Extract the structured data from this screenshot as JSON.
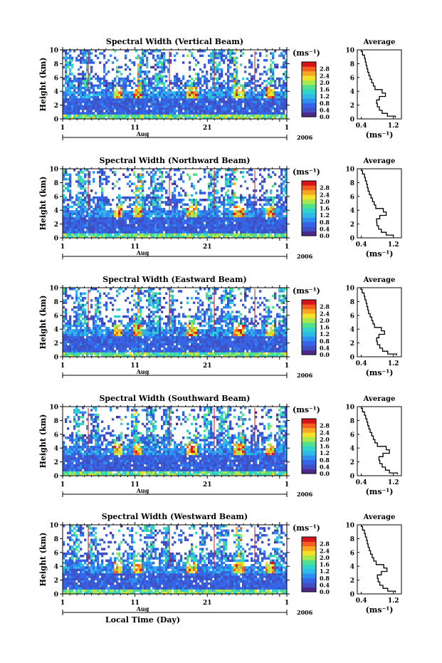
{
  "chart_data": [
    {
      "type": "heatmap",
      "title": "Spectral Width (Vertical Beam)",
      "ylabel": "Height (km)",
      "yticks": [
        "0",
        "2",
        "4",
        "6",
        "8",
        "10"
      ],
      "ylim": [
        0,
        10
      ],
      "xticks": [
        "1",
        "11",
        "21",
        "1"
      ],
      "month": "Aug",
      "year": "2006",
      "colorbar_unit": "(ms⁻¹)",
      "colorbar_ticks": [
        "0.0",
        "0.4",
        "0.8",
        "1.2",
        "1.6",
        "2.0",
        "2.4",
        "2.8"
      ],
      "colorbar_range": [
        0,
        3.2
      ],
      "average": {
        "title": "Average",
        "xticks": [
          "0.4",
          "1.2"
        ],
        "xlim": [
          0.3,
          1.4
        ],
        "xlabel": "(ms⁻¹)",
        "heights": [
          0.2,
          0.6,
          1,
          1.5,
          2,
          2.5,
          3,
          3.5,
          4,
          4.5,
          5,
          5.5,
          6,
          6.5,
          7,
          7.5,
          8,
          8.5,
          9,
          9.5,
          10
        ],
        "values": [
          1.25,
          1.05,
          0.92,
          0.85,
          0.8,
          0.78,
          0.85,
          1.0,
          0.92,
          0.74,
          0.7,
          0.66,
          0.62,
          0.59,
          0.56,
          0.54,
          0.52,
          0.5,
          0.48,
          0.43,
          0.4
        ]
      }
    },
    {
      "type": "heatmap",
      "title": "Spectral Width (Northward Beam)",
      "ylabel": "Height (km)",
      "yticks": [
        "0",
        "2",
        "4",
        "6",
        "8",
        "10"
      ],
      "ylim": [
        0,
        10
      ],
      "xticks": [
        "1",
        "11",
        "21",
        "1"
      ],
      "month": "Aug",
      "year": "2006",
      "colorbar_unit": "(ms⁻¹)",
      "colorbar_ticks": [
        "0.0",
        "0.4",
        "0.8",
        "1.2",
        "1.6",
        "2.0",
        "2.4",
        "2.8"
      ],
      "colorbar_range": [
        0,
        3.2
      ],
      "average": {
        "title": "Average",
        "xticks": [
          "0.4",
          "1.2"
        ],
        "xlim": [
          0.3,
          1.4
        ],
        "xlabel": "(ms⁻¹)",
        "heights": [
          0.2,
          0.6,
          1,
          1.5,
          2,
          2.5,
          3,
          3.5,
          4,
          4.5,
          5,
          5.5,
          6,
          6.5,
          7,
          7.5,
          8,
          8.5,
          9,
          9.5,
          10
        ],
        "values": [
          1.2,
          1.02,
          0.9,
          0.83,
          0.79,
          0.78,
          0.86,
          1.02,
          0.95,
          0.76,
          0.72,
          0.68,
          0.64,
          0.6,
          0.57,
          0.55,
          0.53,
          0.5,
          0.48,
          0.43,
          0.4
        ]
      }
    },
    {
      "type": "heatmap",
      "title": "Spectral Width (Eastward Beam)",
      "ylabel": "Height (km)",
      "yticks": [
        "0",
        "2",
        "4",
        "6",
        "8",
        "10"
      ],
      "ylim": [
        0,
        10
      ],
      "xticks": [
        "1",
        "11",
        "21",
        "1"
      ],
      "month": "Aug",
      "year": "2006",
      "colorbar_unit": "(ms⁻¹)",
      "colorbar_ticks": [
        "0.0",
        "0.4",
        "0.8",
        "1.2",
        "1.6",
        "2.0",
        "2.4",
        "2.8"
      ],
      "colorbar_range": [
        0,
        3.2
      ],
      "average": {
        "title": "Average",
        "xticks": [
          "0.4",
          "1.2"
        ],
        "xlim": [
          0.3,
          1.4
        ],
        "xlabel": "(ms⁻¹)",
        "heights": [
          0.2,
          0.6,
          1,
          1.5,
          2,
          2.5,
          3,
          3.5,
          4,
          4.5,
          5,
          5.5,
          6,
          6.5,
          7,
          7.5,
          8,
          8.5,
          9,
          9.5,
          10
        ],
        "values": [
          1.28,
          1.06,
          0.93,
          0.86,
          0.8,
          0.78,
          0.84,
          0.98,
          0.9,
          0.73,
          0.69,
          0.66,
          0.62,
          0.58,
          0.56,
          0.54,
          0.52,
          0.49,
          0.47,
          0.42,
          0.39
        ]
      }
    },
    {
      "type": "heatmap",
      "title": "Spectral Width (Southward Beam)",
      "ylabel": "Height (km)",
      "yticks": [
        "0",
        "2",
        "4",
        "6",
        "8",
        "10"
      ],
      "ylim": [
        0,
        10
      ],
      "xticks": [
        "1",
        "11",
        "21",
        "1"
      ],
      "month": "Aug",
      "year": "2006",
      "colorbar_unit": "(ms⁻¹)",
      "colorbar_ticks": [
        "0.0",
        "0.4",
        "0.8",
        "1.2",
        "1.6",
        "2.0",
        "2.4",
        "2.8"
      ],
      "colorbar_range": [
        0,
        3.2
      ],
      "average": {
        "title": "Average",
        "xticks": [
          "0.4",
          "1.2"
        ],
        "xlim": [
          0.3,
          1.4
        ],
        "xlabel": "(ms⁻¹)",
        "heights": [
          0.2,
          0.6,
          1,
          1.5,
          2,
          2.5,
          3,
          3.5,
          4,
          4.5,
          5,
          5.5,
          6,
          6.5,
          7,
          7.5,
          8,
          8.5,
          9,
          9.5,
          10
        ],
        "values": [
          1.3,
          1.1,
          1.0,
          0.92,
          0.86,
          0.84,
          0.94,
          1.1,
          1.02,
          0.8,
          0.74,
          0.7,
          0.66,
          0.62,
          0.59,
          0.56,
          0.54,
          0.51,
          0.48,
          0.43,
          0.4
        ]
      }
    },
    {
      "type": "heatmap",
      "title": "Spectral Width (Westward Beam)",
      "ylabel": "Height (km)",
      "yticks": [
        "0",
        "2",
        "4",
        "6",
        "8",
        "10"
      ],
      "ylim": [
        0,
        10
      ],
      "xticks": [
        "1",
        "11",
        "21",
        "1"
      ],
      "month": "Aug",
      "year": "2006",
      "xlabel": "Local Time (Day)",
      "colorbar_unit": "(ms⁻¹)",
      "colorbar_ticks": [
        "0.0",
        "0.4",
        "0.8",
        "1.2",
        "1.6",
        "2.0",
        "2.4",
        "2.8"
      ],
      "colorbar_range": [
        0,
        3.2
      ],
      "average": {
        "title": "Average",
        "xticks": [
          "0.4",
          "1.2"
        ],
        "xlim": [
          0.3,
          1.4
        ],
        "xlabel": "(ms⁻¹)",
        "heights": [
          0.2,
          0.6,
          1,
          1.5,
          2,
          2.5,
          3,
          3.5,
          4,
          4.5,
          5,
          5.5,
          6,
          6.5,
          7,
          7.5,
          8,
          8.5,
          9,
          9.5,
          10
        ],
        "values": [
          1.25,
          1.06,
          0.94,
          0.86,
          0.82,
          0.8,
          0.9,
          1.04,
          0.96,
          0.77,
          0.71,
          0.67,
          0.63,
          0.6,
          0.57,
          0.55,
          0.53,
          0.5,
          0.48,
          0.43,
          0.4
        ]
      }
    }
  ]
}
